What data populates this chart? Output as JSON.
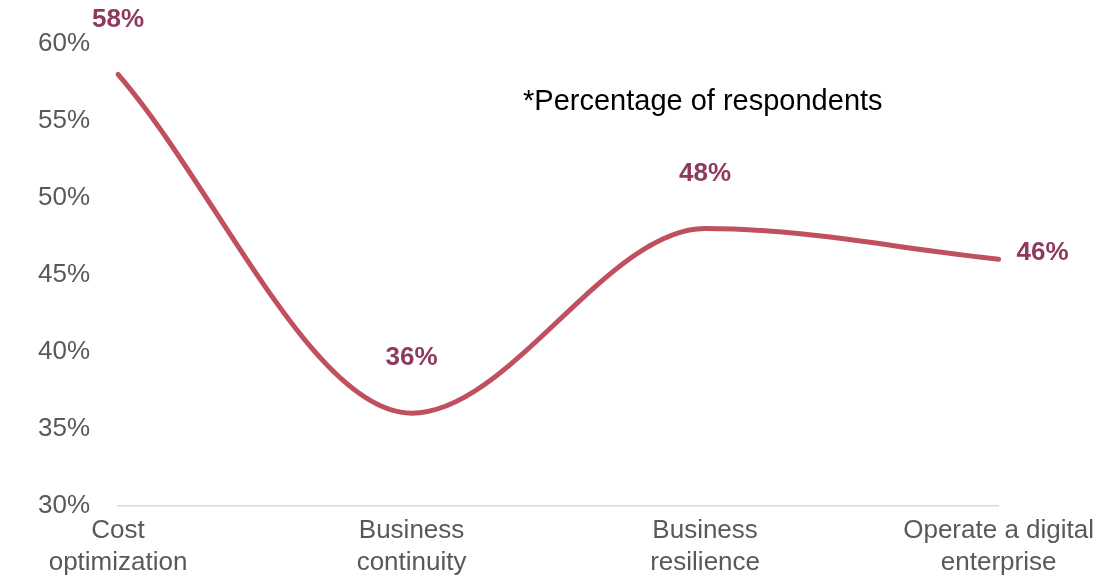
{
  "chart_data": {
    "type": "line",
    "categories": [
      "Cost optimization",
      "Business continuity",
      "Business resilience",
      "Operate a digital enterprise"
    ],
    "series": [
      {
        "color": "#c0505f",
        "values": [
          58,
          36,
          48,
          46
        ],
        "value_labels": [
          "58%",
          "36%",
          "48%",
          "46%"
        ]
      }
    ],
    "ylim": [
      30,
      60
    ],
    "yticks": [
      {
        "value": 30,
        "label": "30%"
      },
      {
        "value": 35,
        "label": "35%"
      },
      {
        "value": 40,
        "label": "40%"
      },
      {
        "value": 45,
        "label": "45%"
      },
      {
        "value": 50,
        "label": "50%"
      },
      {
        "value": 55,
        "label": "55%"
      },
      {
        "value": 60,
        "label": "60%"
      }
    ],
    "grid": false,
    "legend": false,
    "marker": "none",
    "line_style": "solid",
    "annotations": [
      "*Percentage of respondents"
    ]
  }
}
